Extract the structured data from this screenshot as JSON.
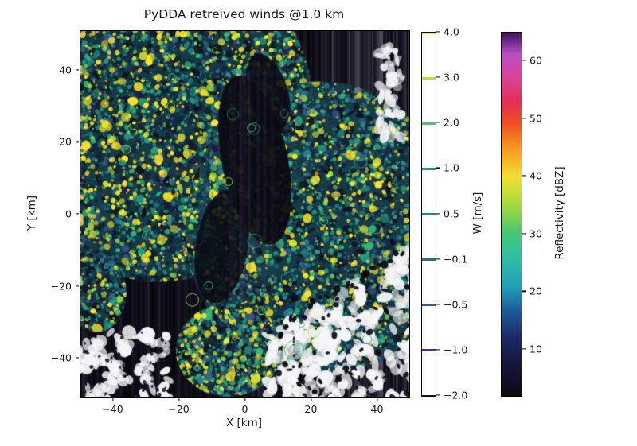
{
  "chart_data": {
    "type": "heatmap",
    "title": "PyDDA retreived winds @1.0 km",
    "xlabel": "X [km]",
    "ylabel": "Y [km]",
    "xlim": [
      -50,
      50
    ],
    "ylim": [
      -51,
      51
    ],
    "xticks": [
      -40,
      -20,
      0,
      20,
      40
    ],
    "xtick_labels": [
      "−40",
      "−20",
      "0",
      "20",
      "40"
    ],
    "yticks": [
      -40,
      -20,
      0,
      20,
      40
    ],
    "ytick_labels": [
      "−40",
      "−20",
      "0",
      "20",
      "40"
    ],
    "grid": false,
    "field": {
      "description": "Dual-Doppler radar reflectivity composite at 1.0 km altitude: two circular radar coverage lobes filled with dense speckled echoes (teal/green ~20-35 dBZ with yellow ~40 dBZ cores), a dark low-reflectivity lens between the lobes, white no-data regions containing black echo blobs in the bottom-left and bottom-right, faint vertical streak artifacts over the black background, and scattered small vertical-wind contour rings",
      "radar_lobes": [
        {
          "center_x_km": -26,
          "center_y_km": 28,
          "radius_km": 47
        },
        {
          "center_x_km": 23,
          "center_y_km": -4,
          "radius_km": 41
        }
      ]
    },
    "colorbars": [
      {
        "label": "W [m/s]",
        "style": "contour-levels",
        "levels": [
          {
            "label": "4.0",
            "color": "#fde725"
          },
          {
            "label": "3.0",
            "color": "#c9e021"
          },
          {
            "label": "2.0",
            "color": "#4ec36b"
          },
          {
            "label": "1.0",
            "color": "#1f9e89"
          },
          {
            "label": "0.5",
            "color": "#25878d"
          },
          {
            "label": "−0.1",
            "color": "#306a8e"
          },
          {
            "label": "−0.5",
            "color": "#375a8c"
          },
          {
            "label": "−1.0",
            "color": "#46327e"
          },
          {
            "label": "−2.0",
            "color": "#440154"
          }
        ]
      },
      {
        "label": "Reflectivity [dBZ]",
        "style": "continuous",
        "range": [
          2,
          65
        ],
        "ticks": [
          {
            "value": 60,
            "label": "60"
          },
          {
            "value": 50,
            "label": "50"
          },
          {
            "value": 40,
            "label": "40"
          },
          {
            "value": 30,
            "label": "30"
          },
          {
            "value": 20,
            "label": "20"
          },
          {
            "value": 10,
            "label": "10"
          }
        ],
        "gradient_stops": [
          {
            "pos": 0,
            "color": "#0b0b12"
          },
          {
            "pos": 8,
            "color": "#151437"
          },
          {
            "pos": 16,
            "color": "#1b2a63"
          },
          {
            "pos": 24,
            "color": "#1e5f9e"
          },
          {
            "pos": 30,
            "color": "#21a0b8"
          },
          {
            "pos": 38,
            "color": "#2fbfa3"
          },
          {
            "pos": 45,
            "color": "#46c871"
          },
          {
            "pos": 52,
            "color": "#9ed93f"
          },
          {
            "pos": 60,
            "color": "#f0e031"
          },
          {
            "pos": 68,
            "color": "#f79a1f"
          },
          {
            "pos": 75,
            "color": "#ef4f1f"
          },
          {
            "pos": 81,
            "color": "#e42f54"
          },
          {
            "pos": 88,
            "color": "#d9459b"
          },
          {
            "pos": 94,
            "color": "#b84fc4"
          },
          {
            "pos": 100,
            "color": "#3c1361"
          }
        ]
      }
    ]
  }
}
